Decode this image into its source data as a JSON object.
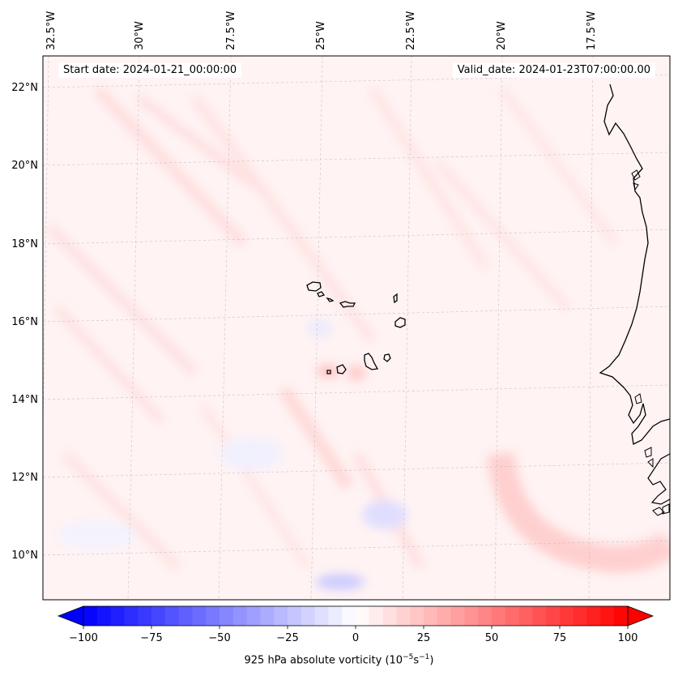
{
  "header": {
    "start_date": "Start date: 2024-01-21_00:00:00",
    "valid_date": "Valid_date: 2024-01-23T07:00:00.00"
  },
  "map": {
    "lon_labels": [
      "32.5°W",
      "30°W",
      "27.5°W",
      "25°W",
      "22.5°W",
      "20°W",
      "17.5°W"
    ],
    "lat_labels": [
      "22°N",
      "20°N",
      "18°N",
      "16°N",
      "14°N",
      "12°N",
      "10°N"
    ],
    "field": "925 hPa absolute vorticity",
    "region": "Cabo Verde islands and West African coast",
    "colors": {
      "coast": "#000000",
      "grid": "#b0b0b0",
      "positive": "#ff0000",
      "negative": "#0000ff"
    }
  },
  "colorbar": {
    "ticks": [
      "−100",
      "−75",
      "−50",
      "−25",
      "0",
      "25",
      "50",
      "75",
      "100"
    ],
    "label_prefix": "925 hPa absolute vorticity (10",
    "label_exp1": "−5",
    "label_mid": "s",
    "label_exp2": "−1",
    "label_suffix": ")"
  }
}
